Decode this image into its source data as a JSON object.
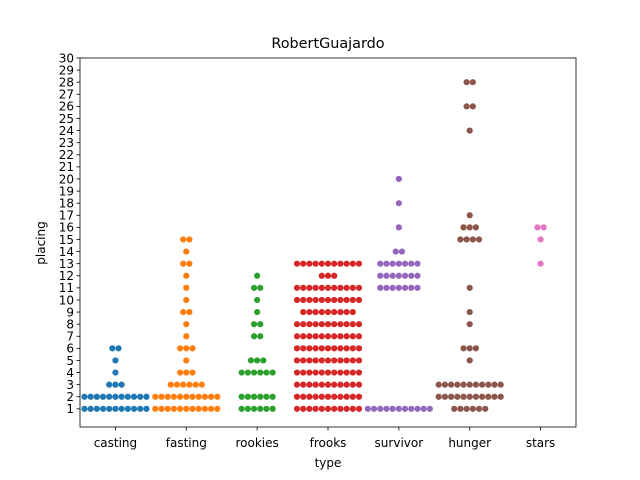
{
  "chart_data": {
    "type": "scatter",
    "subtype": "swarm",
    "title": "RobertGuajardo",
    "xlabel": "type",
    "ylabel": "placing",
    "categories": [
      "casting",
      "fasting",
      "rookies",
      "frooks",
      "survivor",
      "hunger",
      "stars"
    ],
    "yticks": [
      "1",
      "2",
      "3",
      "4",
      "5",
      "6",
      "7",
      "8",
      "9",
      "10",
      "11",
      "12",
      "13",
      "14",
      "15",
      "16",
      "17",
      "18",
      "19",
      "20",
      "21",
      "22",
      "23",
      "24",
      "25",
      "26",
      "27",
      "28",
      "29",
      "30"
    ],
    "ylim": [
      -0.5,
      30
    ],
    "grid": false,
    "legend": "none",
    "series": [
      {
        "category": "casting",
        "color": "#1f77b4",
        "counts": {
          "1": 11,
          "2": 11,
          "3": 3,
          "4": 1,
          "5": 1,
          "6": 2
        }
      },
      {
        "category": "fasting",
        "color": "#ff7f0e",
        "counts": {
          "1": 11,
          "2": 11,
          "3": 6,
          "4": 3,
          "5": 1,
          "6": 3,
          "7": 1,
          "8": 1,
          "9": 2,
          "10": 1,
          "11": 1,
          "12": 1,
          "13": 2,
          "14": 1,
          "15": 2
        }
      },
      {
        "category": "rookies",
        "color": "#2ca02c",
        "counts": {
          "1": 6,
          "2": 6,
          "4": 6,
          "5": 3,
          "7": 2,
          "8": 2,
          "9": 1,
          "10": 1,
          "11": 2,
          "12": 1
        }
      },
      {
        "category": "frooks",
        "color": "#d62728",
        "counts": {
          "1": 11,
          "2": 11,
          "3": 11,
          "4": 11,
          "5": 11,
          "6": 11,
          "7": 11,
          "8": 11,
          "9": 9,
          "10": 11,
          "11": 11,
          "12": 3,
          "13": 11
        }
      },
      {
        "category": "survivor",
        "color": "#9467bd",
        "counts": {
          "1": 11,
          "11": 7,
          "12": 7,
          "13": 7,
          "14": 2,
          "16": 1,
          "18": 1,
          "20": 1
        }
      },
      {
        "category": "hunger",
        "color": "#8c564b",
        "counts": {
          "1": 6,
          "2": 11,
          "3": 11,
          "5": 1,
          "6": 3,
          "8": 1,
          "9": 1,
          "11": 1,
          "15": 4,
          "16": 3,
          "17": 1,
          "24": 1,
          "26": 2,
          "28": 2
        }
      },
      {
        "category": "stars",
        "color": "#e377c2",
        "counts": {
          "13": 1,
          "15": 1,
          "16": 2
        }
      }
    ]
  }
}
